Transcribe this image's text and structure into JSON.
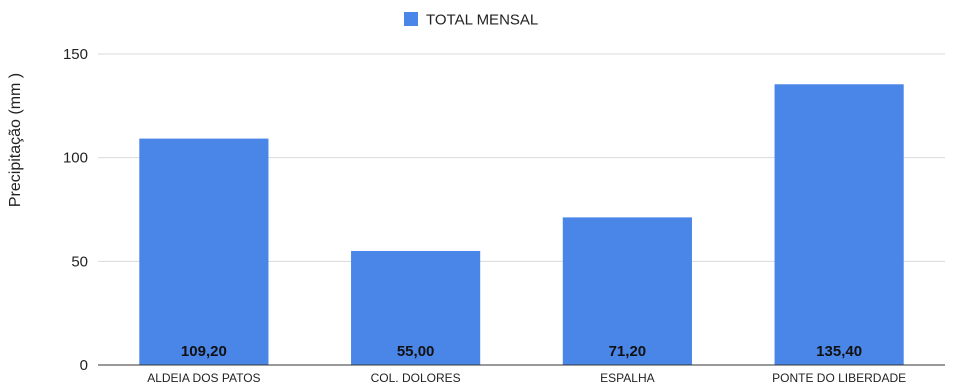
{
  "chart_data": {
    "type": "bar",
    "title": "",
    "xlabel": "",
    "ylabel": "Precipitação (mm )",
    "categories": [
      "ALDEIA DOS PATOS",
      "COL. DOLORES",
      "ESPALHA",
      "PONTE DO LIBERDADE"
    ],
    "series": [
      {
        "name": "TOTAL MENSAL",
        "values": [
          109.2,
          55.0,
          71.2,
          135.4
        ],
        "labels": [
          "109,20",
          "55,00",
          "71,20",
          "135,40"
        ],
        "color": "#4a86e8"
      }
    ],
    "yticks": [
      0,
      50,
      100,
      150
    ],
    "ytick_labels": [
      "0",
      "50",
      "100",
      "150"
    ],
    "ylim": [
      0,
      150
    ],
    "grid": true,
    "legend_position": "top"
  }
}
